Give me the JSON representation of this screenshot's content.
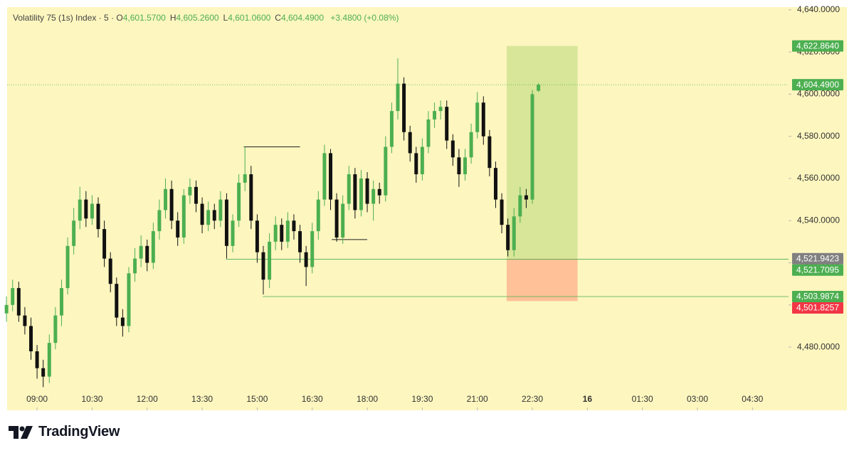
{
  "chart_data": {
    "type": "candlestick",
    "title": "Volatility 75 (1s) Index · 5 ·",
    "ohlc_labels": [
      {
        "key": "O",
        "value": "4,601.5700"
      },
      {
        "key": "H",
        "value": "4,605.2600"
      },
      {
        "key": "L",
        "value": "4,601.0600"
      },
      {
        "key": "C",
        "value": "4,604.4900"
      }
    ],
    "change": "+3.4800 (+0.08%)",
    "up_color": "#4caf50",
    "down_color": "#111111",
    "x": [
      490,
      500,
      510,
      520,
      530,
      540,
      550,
      560,
      570,
      580,
      590,
      600,
      610,
      620,
      630,
      640,
      650,
      660,
      670,
      680,
      690,
      700,
      710,
      720,
      730,
      740,
      750,
      760,
      770,
      780,
      790,
      800,
      810,
      820,
      830,
      840,
      850,
      860,
      870,
      880,
      890,
      900,
      910,
      920,
      930,
      940,
      950,
      960,
      970,
      980,
      990,
      1000,
      1010,
      1020,
      1030,
      1040,
      1050,
      1060,
      1070,
      1080,
      1090,
      1100,
      1110,
      1120,
      1130,
      1140,
      1150,
      1160,
      1170,
      1180,
      1190,
      1200,
      1210,
      1220,
      1230,
      1240,
      1250,
      1260,
      1270,
      1280,
      1290,
      1300,
      1310,
      1320,
      1330,
      1340,
      1350,
      1360
    ],
    "open": [
      4496,
      4500,
      4508,
      4495,
      4490,
      4478,
      4470,
      4466,
      4482,
      4495,
      4508,
      4528,
      4540,
      4550,
      4541,
      4548,
      4536,
      4522,
      4510,
      4494,
      4490,
      4515,
      4522,
      4528,
      4520,
      4535,
      4545,
      4555,
      4540,
      4532,
      4552,
      4556,
      4548,
      4538,
      4545,
      4540,
      4550,
      4528,
      4540,
      4558,
      4562,
      4540,
      4525,
      4512,
      4530,
      4538,
      4530,
      4540,
      4535,
      4525,
      4518,
      4535,
      4550,
      4572,
      4550,
      4532,
      4548,
      4562,
      4545,
      4560,
      4548,
      4555,
      4552,
      4575,
      4592,
      4605,
      4582,
      4572,
      4562,
      4575,
      4588,
      4592,
      4594,
      4578,
      4570,
      4562,
      4570,
      4582,
      4596,
      4580,
      4565,
      4550,
      4538,
      4526,
      4542,
      4552,
      4550,
      4601.57
    ],
    "high": [
      4504,
      4512,
      4511,
      4499,
      4494,
      4481,
      4474,
      4486,
      4499,
      4512,
      4532,
      4546,
      4556,
      4554,
      4552,
      4551,
      4540,
      4525,
      4513,
      4498,
      4518,
      4527,
      4533,
      4531,
      4539,
      4550,
      4560,
      4559,
      4544,
      4555,
      4560,
      4559,
      4551,
      4549,
      4548,
      4554,
      4553,
      4543,
      4562,
      4575,
      4566,
      4543,
      4528,
      4534,
      4542,
      4541,
      4544,
      4543,
      4538,
      4528,
      4539,
      4554,
      4576,
      4574,
      4553,
      4552,
      4566,
      4565,
      4564,
      4563,
      4559,
      4558,
      4580,
      4596,
      4617,
      4608,
      4585,
      4575,
      4579,
      4592,
      4596,
      4597,
      4597,
      4581,
      4574,
      4574,
      4586,
      4601,
      4599,
      4583,
      4568,
      4553,
      4541,
      4546,
      4556,
      4555,
      4602,
      4605.26
    ],
    "low": [
      4492,
      4497,
      4492,
      4486,
      4474,
      4465,
      4461,
      4463,
      4479,
      4490,
      4505,
      4524,
      4536,
      4537,
      4538,
      4532,
      4518,
      4506,
      4490,
      4485,
      4487,
      4511,
      4518,
      4516,
      4517,
      4531,
      4541,
      4536,
      4528,
      4529,
      4548,
      4544,
      4534,
      4535,
      4536,
      4537,
      4522,
      4525,
      4537,
      4554,
      4536,
      4520,
      4505,
      4508,
      4526,
      4526,
      4527,
      4531,
      4520,
      4509,
      4515,
      4531,
      4547,
      4545,
      4530,
      4529,
      4545,
      4541,
      4542,
      4544,
      4540,
      4548,
      4549,
      4572,
      4588,
      4578,
      4568,
      4558,
      4559,
      4572,
      4584,
      4588,
      4574,
      4566,
      4556,
      4559,
      4567,
      4579,
      4576,
      4561,
      4546,
      4534,
      4523,
      4523,
      4539,
      4546,
      4548,
      4601.06
    ],
    "close": [
      4500,
      4508,
      4495,
      4490,
      4478,
      4470,
      4466,
      4482,
      4495,
      4508,
      4528,
      4540,
      4550,
      4541,
      4548,
      4536,
      4522,
      4510,
      4494,
      4490,
      4515,
      4522,
      4528,
      4520,
      4535,
      4545,
      4555,
      4540,
      4532,
      4552,
      4556,
      4548,
      4538,
      4545,
      4540,
      4550,
      4528,
      4540,
      4558,
      4562,
      4540,
      4525,
      4512,
      4530,
      4538,
      4530,
      4540,
      4535,
      4525,
      4518,
      4535,
      4550,
      4572,
      4550,
      4532,
      4548,
      4562,
      4545,
      4560,
      4548,
      4555,
      4552,
      4575,
      4592,
      4605,
      4582,
      4572,
      4562,
      4575,
      4588,
      4592,
      4594,
      4578,
      4570,
      4562,
      4570,
      4582,
      4596,
      4580,
      4565,
      4550,
      4538,
      4526,
      4542,
      4552,
      4550,
      4600,
      4604.49
    ],
    "xlim": [
      491,
      1769
    ],
    "xticks": [
      {
        "value": 540,
        "label": "09:00"
      },
      {
        "value": 630,
        "label": "10:30"
      },
      {
        "value": 720,
        "label": "12:00"
      },
      {
        "value": 810,
        "label": "13:30"
      },
      {
        "value": 900,
        "label": "15:00"
      },
      {
        "value": 990,
        "label": "16:30"
      },
      {
        "value": 1080,
        "label": "18:00"
      },
      {
        "value": 1170,
        "label": "19:30"
      },
      {
        "value": 1260,
        "label": "21:00"
      },
      {
        "value": 1350,
        "label": "22:30"
      },
      {
        "value": 1440,
        "label": "16"
      },
      {
        "value": 1530,
        "label": "01:30"
      },
      {
        "value": 1620,
        "label": "03:00"
      },
      {
        "value": 1710,
        "label": "04:30"
      }
    ],
    "ylim": [
      4450,
      4641.3
    ],
    "yticks": [
      {
        "value": 4480,
        "label": "4,480.0000"
      },
      {
        "value": 4500,
        "label": "4,500.0000"
      },
      {
        "value": 4520,
        "label": "4,520.0000"
      },
      {
        "value": 4540,
        "label": "4,540.0000"
      },
      {
        "value": 4560,
        "label": "4,560.0000"
      },
      {
        "value": 4580,
        "label": "4,580.0000"
      },
      {
        "value": 4600,
        "label": "4,600.0000"
      },
      {
        "value": 4620,
        "label": "4,620.0000"
      },
      {
        "value": 4640,
        "label": "4,640.0000"
      }
    ],
    "position": {
      "x": [
        1308,
        1424
      ],
      "target": 4622.864,
      "entry": 4521.9423,
      "stop": 4501.8257
    },
    "drawings": [
      {
        "value": 4575,
        "x": [
          878,
          970
        ]
      },
      {
        "value": 4531,
        "x": [
          1022,
          1080
        ]
      }
    ],
    "price_labels": [
      {
        "value": 4622.864,
        "label": "4,622.8640",
        "color": "#4caf50"
      },
      {
        "value": 4604.49,
        "label": "4,604.4900",
        "color": "#4caf50",
        "from": 491,
        "dotted": true
      },
      {
        "value": 4521.9423,
        "label": "4,521.9423",
        "color": "#808080"
      },
      {
        "value": 4521.7095,
        "label": "4,521.7095",
        "color": "#4caf50",
        "from": 849
      },
      {
        "value": 4503.9874,
        "label": "4,503.9874",
        "color": "#4caf50",
        "from": 909
      },
      {
        "value": 4501.8257,
        "label": "4,501.8257",
        "color": "#f23645"
      }
    ],
    "brand": "TradingView"
  }
}
